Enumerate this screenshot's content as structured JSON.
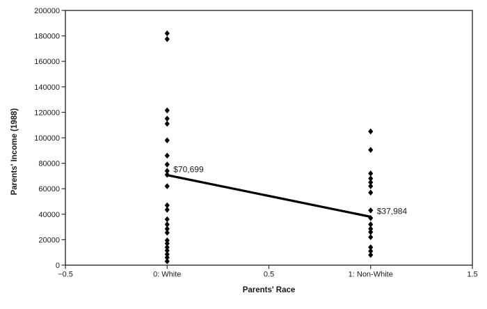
{
  "figure": {
    "background": "#ffffff",
    "frame_color": "#2e2e2e"
  },
  "chart_data": {
    "type": "scatter",
    "title": "",
    "xlabel": "Parents' Race",
    "ylabel": "Parents' Income (1988)",
    "xlim": [
      -0.5,
      1.5
    ],
    "ylim": [
      0,
      200000
    ],
    "grid": false,
    "legend": "none",
    "marker": "diamond",
    "marker_color": "#000000",
    "x_ticks": [
      {
        "value": -0.5,
        "label": "−0.5"
      },
      {
        "value": 0,
        "label": "0: White"
      },
      {
        "value": 0.5,
        "label": "0.5"
      },
      {
        "value": 1,
        "label": "1: Non-White"
      },
      {
        "value": 1.5,
        "label": "1.5"
      }
    ],
    "y_ticks": [
      {
        "value": 0,
        "label": "0"
      },
      {
        "value": 20000,
        "label": "20000"
      },
      {
        "value": 40000,
        "label": "40000"
      },
      {
        "value": 60000,
        "label": "60000"
      },
      {
        "value": 80000,
        "label": "80000"
      },
      {
        "value": 100000,
        "label": "100000"
      },
      {
        "value": 120000,
        "label": "120000"
      },
      {
        "value": 140000,
        "label": "140000"
      },
      {
        "value": 160000,
        "label": "160000"
      },
      {
        "value": 180000,
        "label": "180000"
      },
      {
        "value": 200000,
        "label": "200000"
      }
    ],
    "series": [
      {
        "name": "0: White",
        "x": 0,
        "values": [
          182000,
          177500,
          121500,
          115000,
          111000,
          98000,
          86000,
          79000,
          74000,
          71000,
          62000,
          47000,
          43500,
          36000,
          32000,
          28500,
          25500,
          19500,
          17000,
          14000,
          11500,
          8500,
          6000,
          3000
        ]
      },
      {
        "name": "1: Non-White",
        "x": 1,
        "values": [
          105000,
          90500,
          72000,
          68000,
          65000,
          62000,
          57000,
          43000,
          37000,
          32000,
          28500,
          26000,
          22000,
          14000,
          11000,
          8000
        ]
      }
    ],
    "trend_line": {
      "x": [
        0,
        1
      ],
      "y": [
        70699,
        37984
      ],
      "color": "#000000",
      "width": 3.25
    },
    "annotations": [
      {
        "text": "$70,699",
        "x": 0,
        "y": 70699
      },
      {
        "text": "$37,984",
        "x": 1,
        "y": 37984
      }
    ]
  }
}
